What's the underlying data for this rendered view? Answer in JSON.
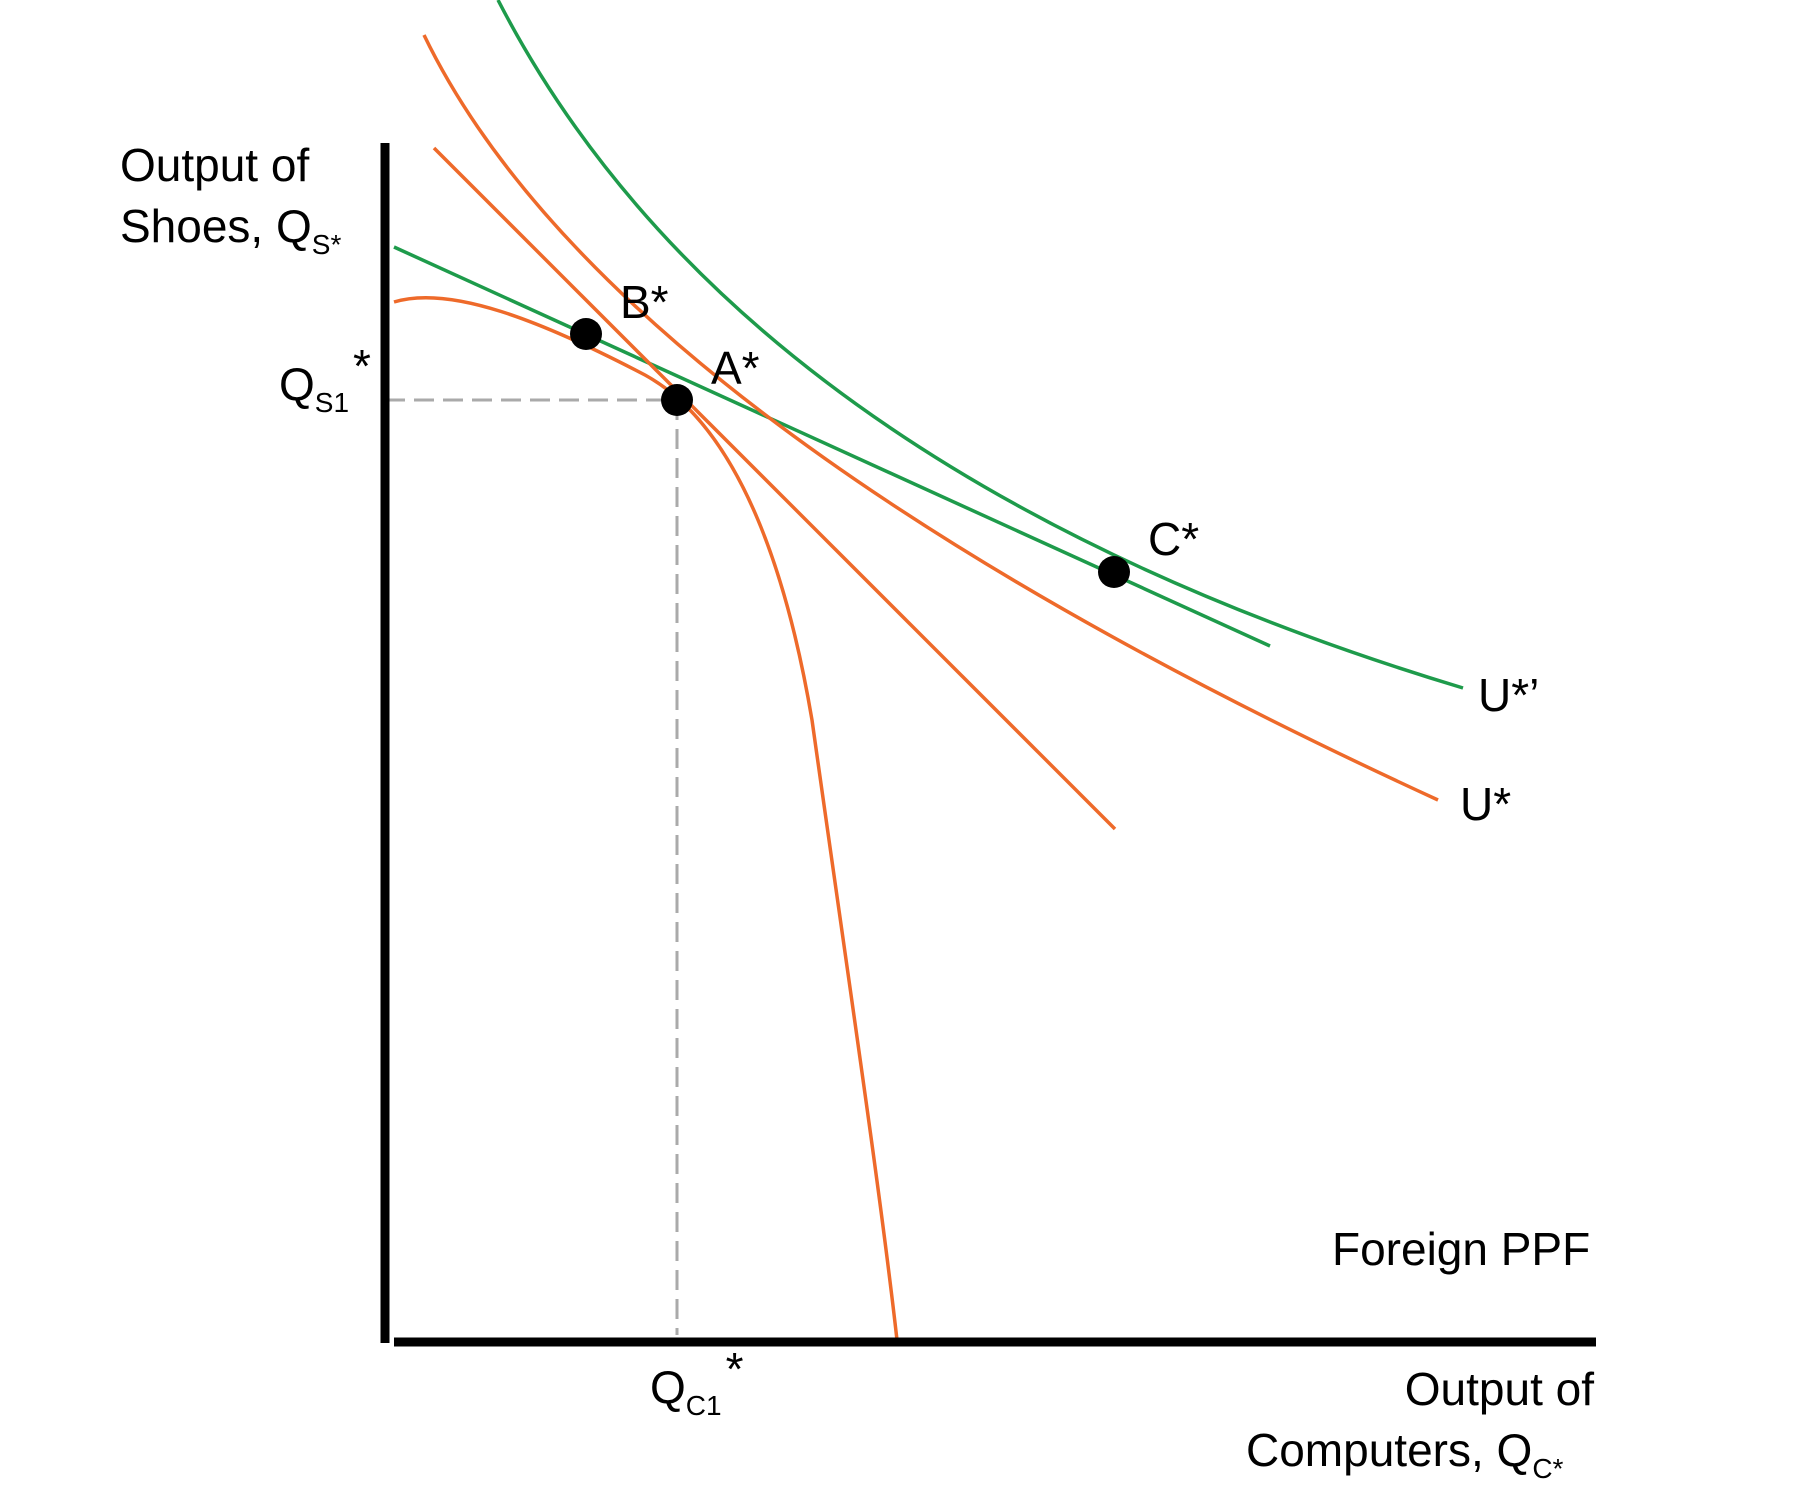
{
  "diagram": {
    "y_axis_label": {
      "line1": "Output of",
      "line2": "Shoes, Q",
      "sub": "S*"
    },
    "x_axis_label": {
      "line1": "Output of",
      "line2": "Computers, Q",
      "sub": "C*"
    },
    "y_tick": {
      "main": "Q",
      "sub": "S1",
      "star": "*"
    },
    "x_tick": {
      "main": "Q",
      "sub": "C1",
      "star": "*"
    },
    "points": {
      "B": "B*",
      "A": "A*",
      "C": "C*"
    },
    "curves": {
      "indifference_new": "U*’",
      "indifference_old": "U*",
      "ppf": "Foreign PPF"
    },
    "colors": {
      "ppf": "#EE6A2A",
      "indifference_old": "#EE6A2A",
      "indifference_new": "#1E9B4B",
      "world_price_line": "#1E9B4B",
      "autarky_price_line": "#EE6A2A",
      "axes": "#000000",
      "guides": "#AAAAAA"
    }
  }
}
